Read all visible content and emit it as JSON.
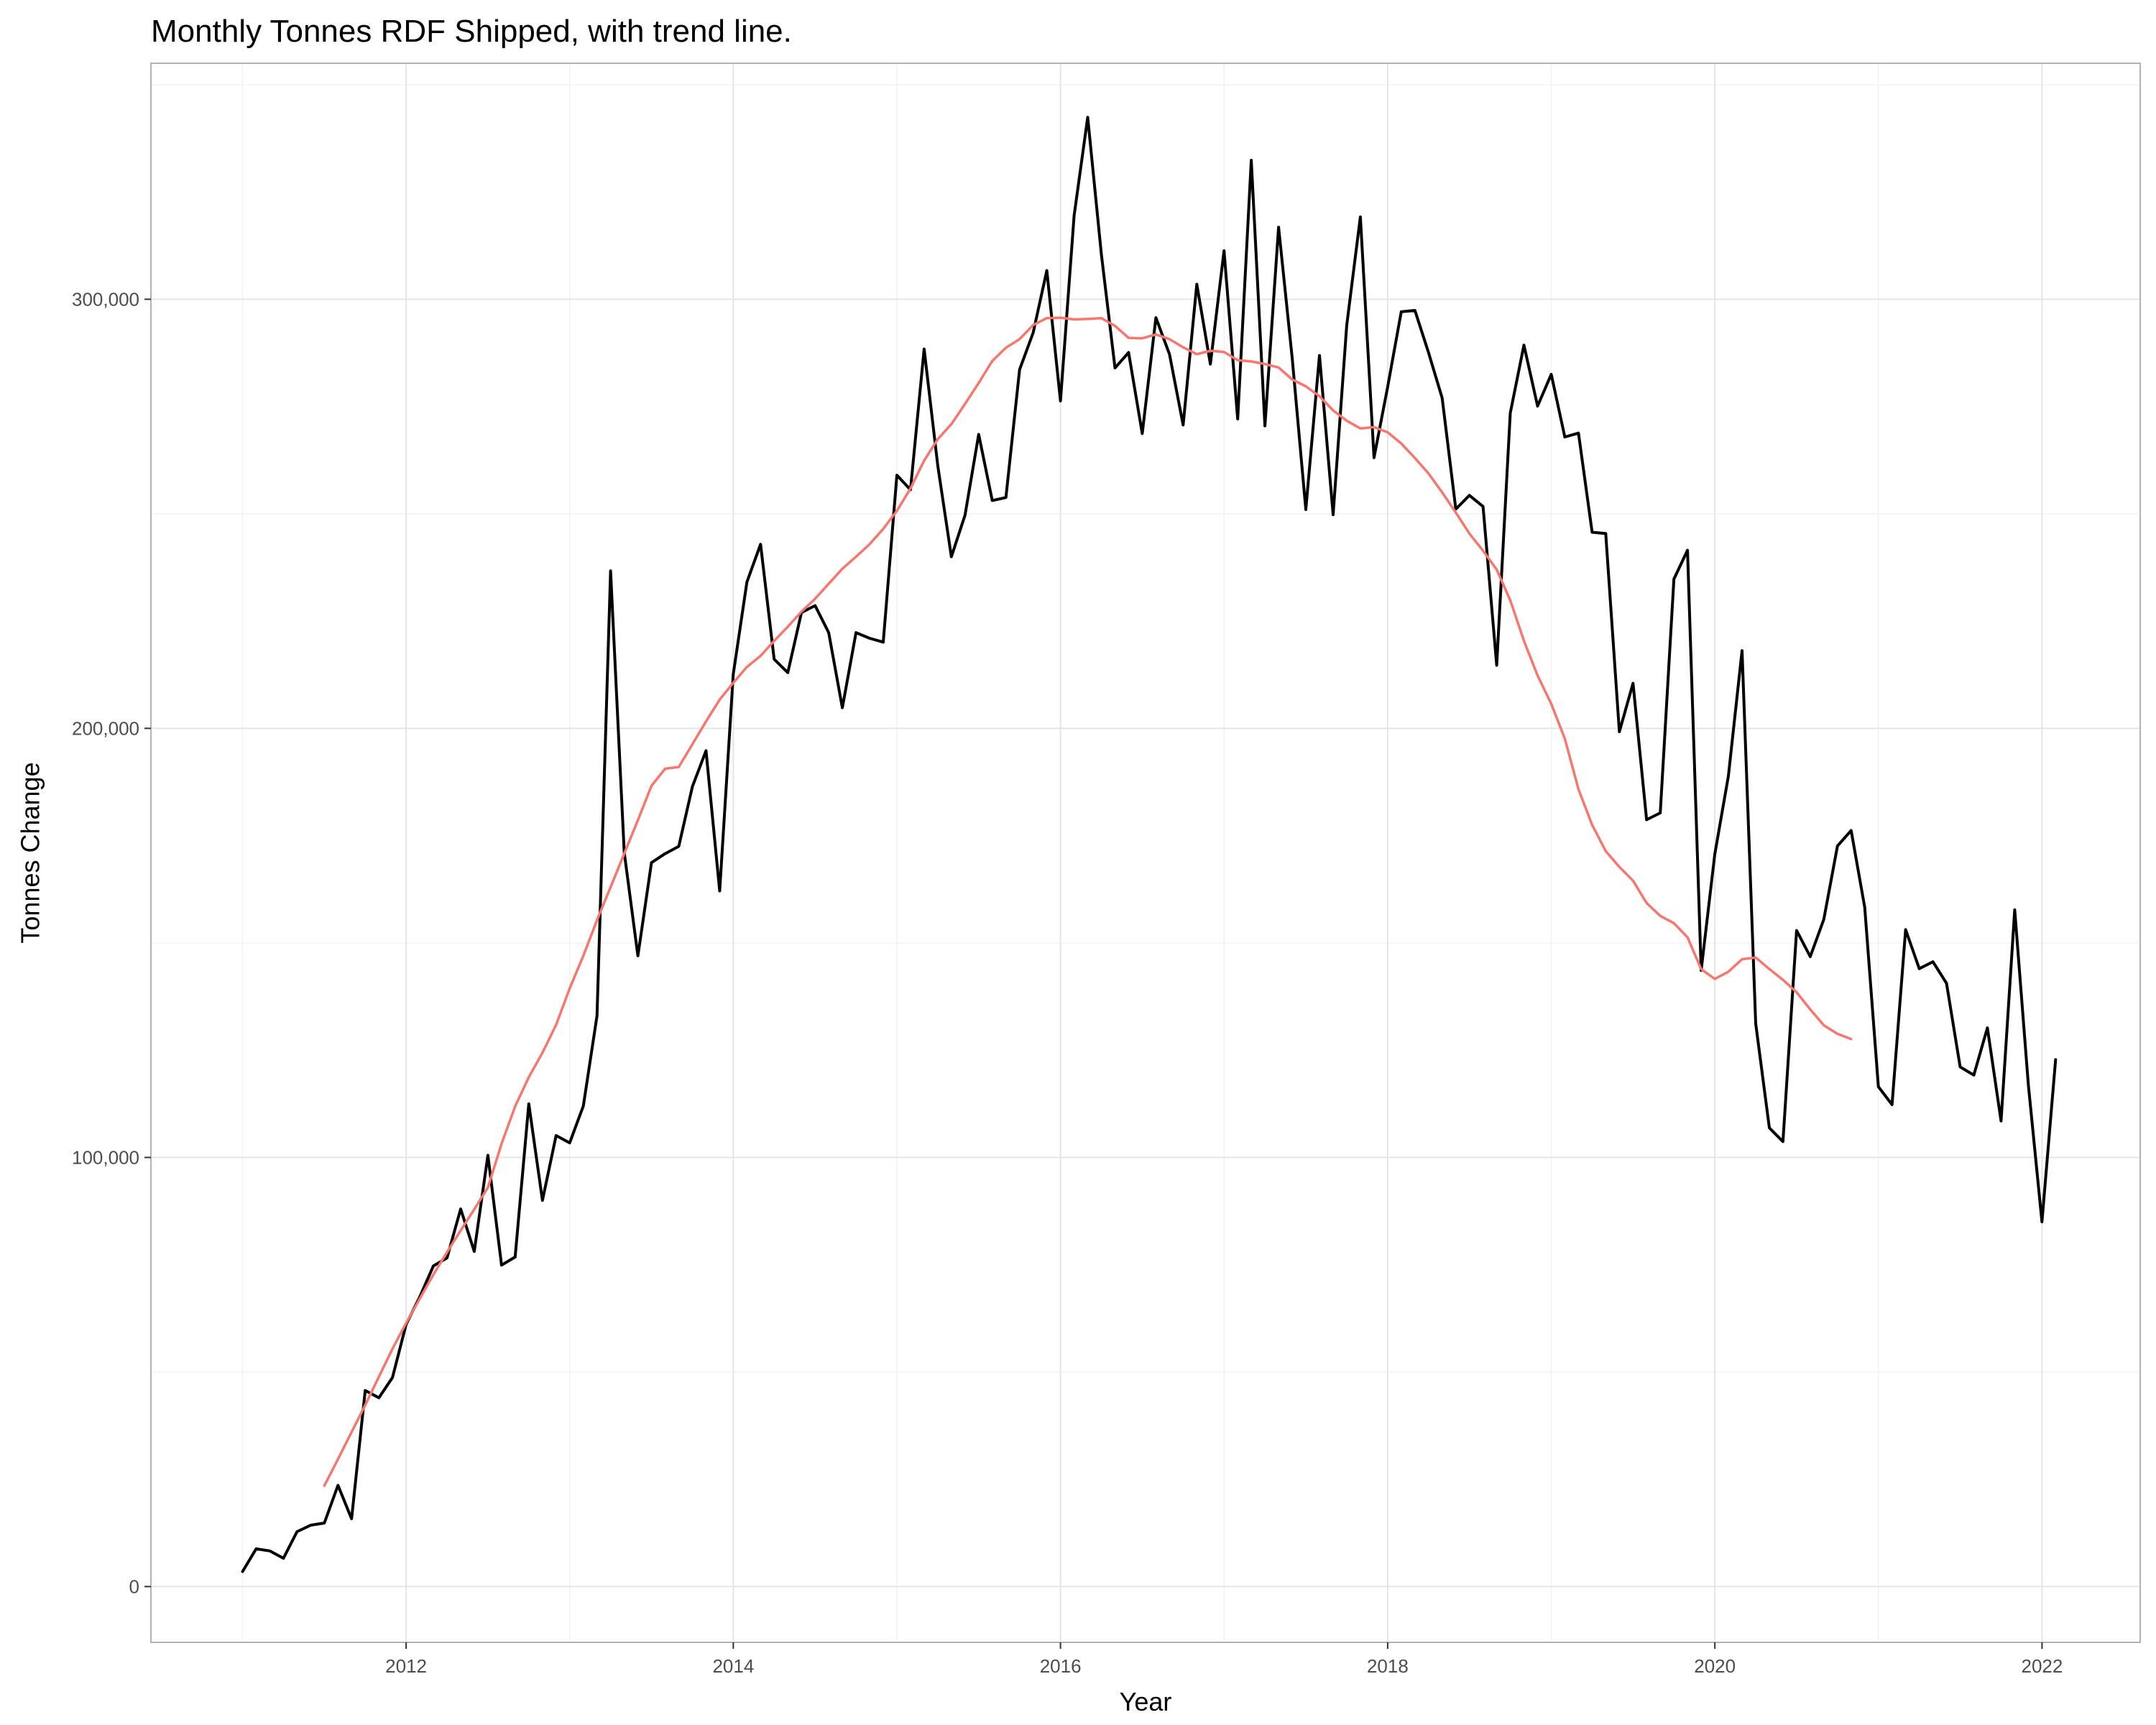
{
  "chart_data": {
    "type": "line",
    "title": "Monthly Tonnes RDF Shipped, with trend line.",
    "xlabel": "Year",
    "ylabel": "Tonnes Change",
    "xlim": [
      2010.44,
      2022.6
    ],
    "ylim": [
      -13000,
      355000
    ],
    "x_ticks": [
      2012,
      2014,
      2016,
      2018,
      2020,
      2022
    ],
    "x_tick_labels": [
      "2012",
      "2014",
      "2016",
      "2018",
      "2020",
      "2022"
    ],
    "y_ticks": [
      0,
      100000,
      200000,
      300000
    ],
    "y_tick_labels": [
      "0",
      "100,000",
      "200,000",
      "300,000"
    ],
    "grid": true,
    "series": [
      {
        "color": "#000000",
        "x_start": 2011.0,
        "x_step": 0.08333,
        "values": [
          3500,
          8800,
          8300,
          6600,
          12800,
          14300,
          14800,
          23600,
          15800,
          45700,
          44000,
          48700,
          61100,
          67500,
          74700,
          76600,
          88000,
          78100,
          100500,
          74900,
          76800,
          112500,
          90000,
          105100,
          103400,
          112000,
          133000,
          236700,
          171100,
          147000,
          168700,
          170800,
          172500,
          186400,
          194800,
          162100,
          212600,
          234100,
          242900,
          216100,
          213000,
          227000,
          228600,
          222300,
          204800,
          222300,
          221000,
          220100,
          259000,
          255600,
          288400,
          261200,
          240000,
          249700,
          268500,
          253100,
          253800,
          283600,
          292200,
          306700,
          276300,
          319500,
          342400,
          310500,
          284000,
          287600,
          268700,
          295700,
          287200,
          270700,
          303500,
          284900,
          311300,
          272100,
          332400,
          270500,
          316800,
          286200,
          251000,
          286900,
          249800,
          293900,
          319200,
          263100,
          279500,
          297100,
          297400,
          287600,
          277000,
          251100,
          254300,
          251700,
          214700,
          273500,
          289300,
          275100,
          282500,
          267900,
          268800,
          245700,
          245400,
          199200,
          210500,
          178700,
          180300,
          234800,
          241500,
          143600,
          170700,
          188900,
          218100,
          131200,
          106900,
          103700,
          152900,
          146800,
          155500,
          172600,
          176200,
          158300,
          116500,
          112300,
          153100,
          144000,
          145600,
          140600,
          121100,
          119200,
          130200,
          108500,
          157700,
          116900,
          85000,
          122800
        ]
      },
      {
        "color": "#F8766D",
        "x_start": 2011.5,
        "x_step": 0.08333,
        "values": [
          23500,
          29700,
          36000,
          42300,
          48900,
          55400,
          61400,
          67100,
          72700,
          77900,
          83000,
          87900,
          93000,
          103200,
          111900,
          118700,
          124400,
          130900,
          139400,
          147000,
          155300,
          163000,
          170800,
          178600,
          186600,
          190600,
          191000,
          196300,
          201600,
          206700,
          210600,
          214300,
          216900,
          220400,
          223700,
          227200,
          230200,
          233700,
          237200,
          240000,
          242900,
          246500,
          250700,
          255900,
          262400,
          267400,
          270900,
          275600,
          280500,
          285600,
          288700,
          290700,
          294000,
          295600,
          295700,
          295300,
          295400,
          295600,
          293800,
          291000,
          290900,
          291800,
          290700,
          288800,
          287200,
          288000,
          287700,
          285800,
          285500,
          284900,
          284100,
          281300,
          279700,
          277400,
          274100,
          271700,
          269900,
          270200,
          269000,
          266400,
          263000,
          259400,
          255000,
          250300,
          245400,
          241400,
          237000,
          229800,
          220400,
          212300,
          205700,
          197600,
          185800,
          177500,
          171400,
          167700,
          164500,
          159300,
          156300,
          154600,
          151300,
          143900,
          141600,
          143300,
          146200,
          146600,
          143900,
          141400,
          138500,
          134500,
          130800,
          128800,
          127600
        ]
      }
    ]
  }
}
